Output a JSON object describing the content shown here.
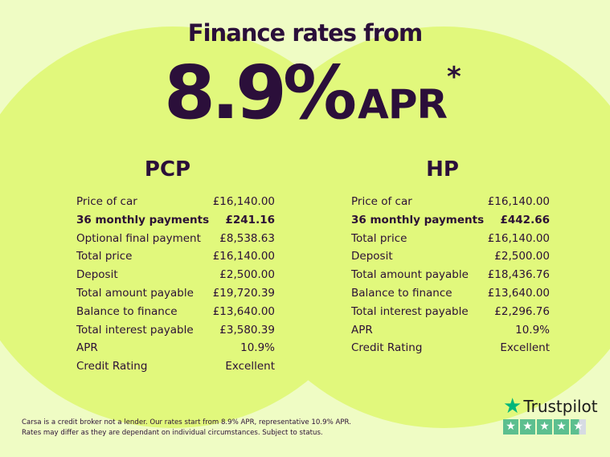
{
  "header": {
    "title": "Finance rates from",
    "rate": "8.9%",
    "rate_suffix": "APR",
    "asterisk": "*"
  },
  "pcp": {
    "title": "PCP",
    "rows": [
      {
        "label": "Price of car",
        "value": "£16,140.00"
      },
      {
        "label": "36 monthly payments",
        "value": "£241.16",
        "bold": true
      },
      {
        "label": "Optional final payment",
        "value": "£8,538.63"
      },
      {
        "label": "Total price",
        "value": "£16,140.00"
      },
      {
        "label": "Deposit",
        "value": "£2,500.00"
      },
      {
        "label": "Total amount payable",
        "value": "£19,720.39"
      },
      {
        "label": "Balance to finance",
        "value": "£13,640.00"
      },
      {
        "label": "Total interest payable",
        "value": "£3,580.39"
      },
      {
        "label": "APR",
        "value": "10.9%"
      },
      {
        "label": "Credit Rating",
        "value": "Excellent"
      }
    ]
  },
  "hp": {
    "title": "HP",
    "rows": [
      {
        "label": "Price of car",
        "value": "£16,140.00"
      },
      {
        "label": "36 monthly payments",
        "value": "£442.66",
        "bold": true
      },
      {
        "label": "Total price",
        "value": "£16,140.00"
      },
      {
        "label": "Deposit",
        "value": "£2,500.00"
      },
      {
        "label": "Total amount payable",
        "value": "£18,436.76"
      },
      {
        "label": "Balance to finance",
        "value": "£13,640.00"
      },
      {
        "label": "Total interest payable",
        "value": "£2,296.76"
      },
      {
        "label": "APR",
        "value": "10.9%"
      },
      {
        "label": "Credit Rating",
        "value": "Excellent"
      }
    ]
  },
  "disclaimer": {
    "line1": "Carsa is a credit broker not a lender. Our rates start from 8.9% APR, representative 10.9% APR.",
    "line2": "Rates may differ as they are dependant on individual circumstances. Subject to status."
  },
  "trustpilot": {
    "label": "Trustpilot",
    "rating_stars": 4.5,
    "max_stars": 5,
    "color": "#00b67a"
  },
  "colors": {
    "background": "#effcc4",
    "circle": "#e1f87c",
    "text": "#2b0f3a"
  }
}
